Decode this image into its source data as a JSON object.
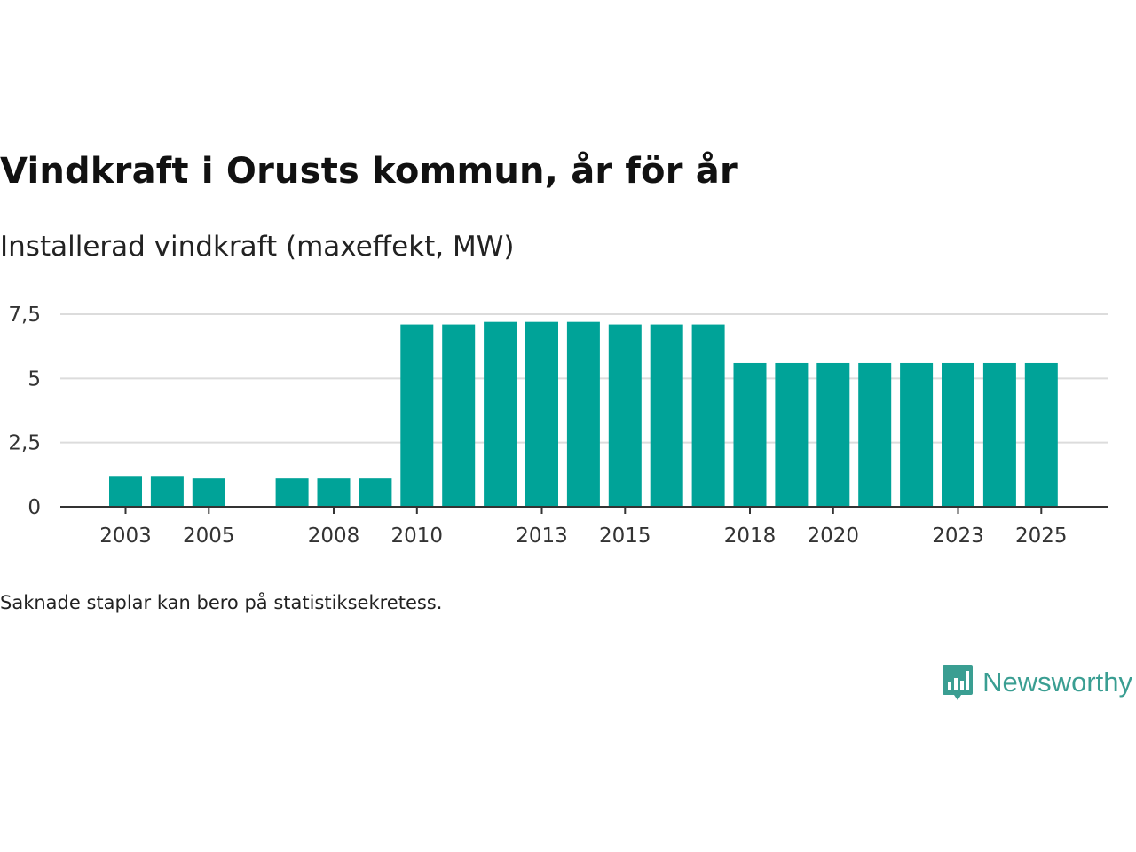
{
  "title": "Vindkraft i Orusts kommun, år för år",
  "subtitle": "Installerad vindkraft (maxeffekt, MW)",
  "footnote": "Saknade staplar kan bero på statistiksekretess.",
  "brand": {
    "name": "Newsworthy",
    "icon": "newsworthy-logo-icon",
    "color": "#3a9e92"
  },
  "chart_data": {
    "type": "bar",
    "title": "Vindkraft i Orusts kommun, år för år",
    "ylabel": "Installerad vindkraft (maxeffekt, MW)",
    "xlabel": "",
    "categories": [
      2003,
      2004,
      2005,
      2006,
      2007,
      2008,
      2009,
      2010,
      2011,
      2012,
      2013,
      2014,
      2015,
      2016,
      2017,
      2018,
      2019,
      2020,
      2021,
      2022,
      2023,
      2024,
      2025
    ],
    "values": [
      1.2,
      1.2,
      1.1,
      null,
      1.1,
      1.1,
      1.1,
      7.1,
      7.1,
      7.2,
      7.2,
      7.2,
      7.1,
      7.1,
      7.1,
      5.6,
      5.6,
      5.6,
      5.6,
      5.6,
      5.6,
      5.6,
      5.6
    ],
    "xticks": [
      2003,
      2005,
      2008,
      2010,
      2013,
      2015,
      2018,
      2020,
      2023,
      2025
    ],
    "yticks": [
      0,
      2.5,
      5,
      7.5
    ],
    "ytick_labels": [
      "0",
      "2,5",
      "5",
      "7,5"
    ],
    "ylim": [
      0,
      7.5
    ],
    "grid": true,
    "bar_color": "#00a398"
  }
}
